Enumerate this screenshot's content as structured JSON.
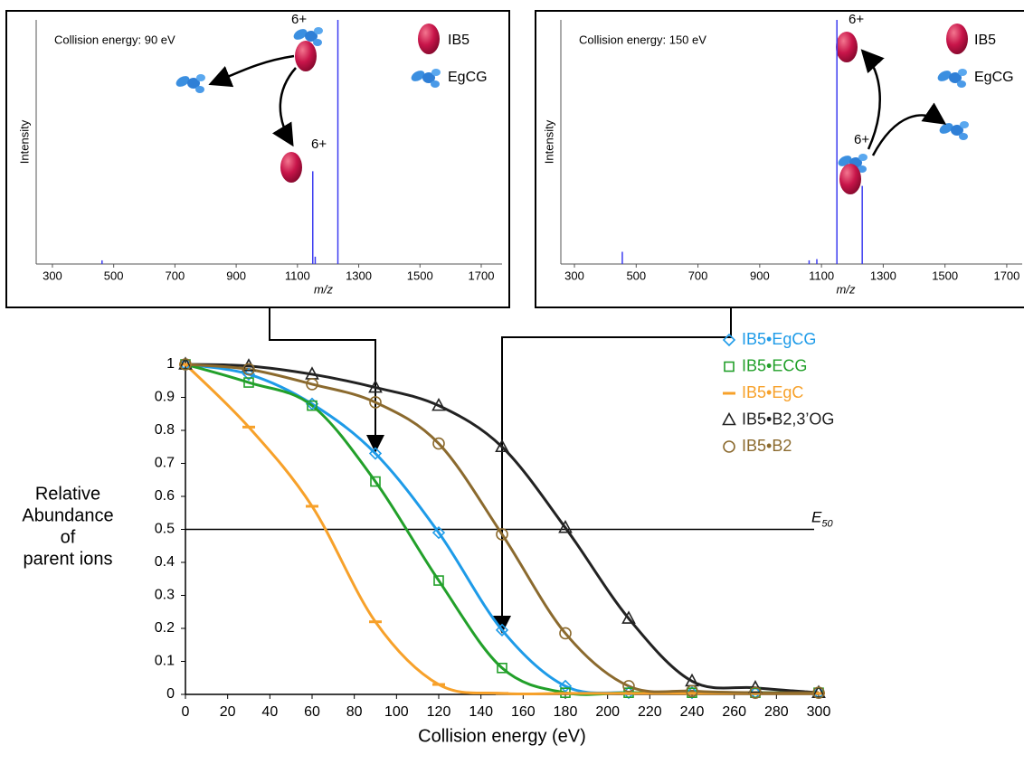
{
  "chart_data": [
    {
      "type": "spectrum",
      "annotation": "Collision energy: 90 eV",
      "xlabel": "m/z",
      "ylabel": "Intensity",
      "x": [
        462,
        1150,
        1158,
        1232
      ],
      "values": [
        1.5,
        38,
        3,
        100
      ],
      "color": "#3c3cf0",
      "xlim": [
        247,
        1768
      ],
      "ylim": [
        0,
        100
      ],
      "xticks": [
        300,
        500,
        700,
        900,
        1100,
        1300,
        1500,
        1700
      ],
      "legend": [
        "IB5",
        "EgCG"
      ],
      "charge_labels": [
        "6+",
        "6+"
      ]
    },
    {
      "type": "spectrum",
      "annotation": "Collision energy: 150 eV",
      "xlabel": "m/z",
      "ylabel": "Intensity",
      "x": [
        455,
        1060,
        1085,
        1150,
        1232
      ],
      "values": [
        5,
        1.5,
        2,
        100,
        32
      ],
      "color": "#3c3cf0",
      "xlim": [
        256,
        1750
      ],
      "ylim": [
        0,
        100
      ],
      "xticks": [
        300,
        500,
        700,
        900,
        1100,
        1300,
        1500,
        1700
      ],
      "legend": [
        "IB5",
        "EgCG"
      ],
      "charge_labels": [
        "6+",
        "6+"
      ]
    },
    {
      "type": "line",
      "xlabel": "Collision energy (eV)",
      "ylabel": [
        "Relative",
        "Abundance",
        "of",
        "parent ions"
      ],
      "x": [
        0,
        30,
        60,
        90,
        120,
        150,
        180,
        210,
        240,
        270,
        300
      ],
      "series": [
        {
          "name": "IB5•EgCG",
          "color": "#1e9be8",
          "marker": "diamond",
          "values": [
            1,
            0.97,
            0.88,
            0.73,
            0.49,
            0.195,
            0.025,
            0.005,
            0.005,
            0.005,
            0.005
          ]
        },
        {
          "name": "IB5•ECG",
          "color": "#22a02a",
          "marker": "square",
          "values": [
            1,
            0.945,
            0.875,
            0.645,
            0.345,
            0.08,
            0.005,
            0.005,
            0.005,
            0.005,
            0.005
          ]
        },
        {
          "name": "IB5•EgC",
          "color": "#f7a12a",
          "marker": "dash",
          "values": [
            1,
            0.81,
            0.57,
            0.22,
            0.03,
            0.003,
            0.003,
            0.003,
            0.003,
            0.003,
            0.003
          ]
        },
        {
          "name": "IB5•B2,3’OG",
          "color": "#222222",
          "marker": "triangle",
          "values": [
            1,
            0.995,
            0.97,
            0.93,
            0.875,
            0.75,
            0.505,
            0.23,
            0.04,
            0.02,
            0.005
          ]
        },
        {
          "name": "IB5•B2",
          "color": "#8b6a2e",
          "marker": "circle",
          "values": [
            1,
            0.985,
            0.94,
            0.885,
            0.76,
            0.485,
            0.185,
            0.025,
            0.01,
            0.005,
            0.005
          ]
        }
      ],
      "hline": {
        "value": 0.5,
        "label": "E",
        "label_sub": "50"
      },
      "arrow_x": [
        90,
        150
      ],
      "xlim": [
        0,
        300
      ],
      "ylim": [
        0,
        1
      ],
      "xticks": [
        0,
        20,
        40,
        60,
        80,
        100,
        120,
        140,
        160,
        180,
        200,
        220,
        240,
        260,
        280,
        300
      ],
      "yticks": [
        0,
        0.1,
        0.2,
        0.3,
        0.4,
        0.5,
        0.6,
        0.7,
        0.8,
        0.9,
        1
      ]
    }
  ]
}
